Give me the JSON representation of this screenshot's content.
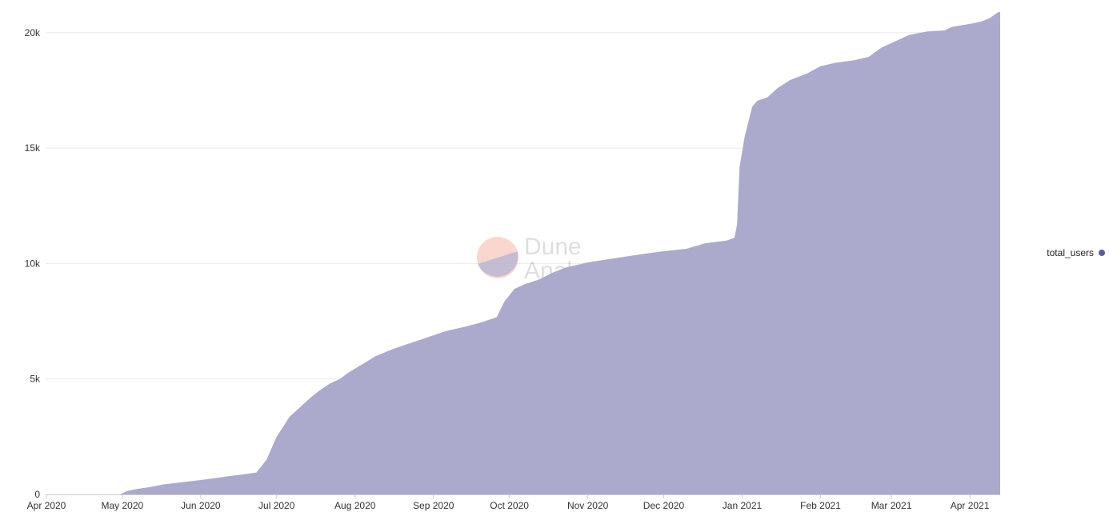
{
  "chart_data": {
    "type": "area",
    "title": "",
    "xlabel": "",
    "ylabel": "",
    "ylim": [
      0,
      21000
    ],
    "xlim": [
      "2020-04-01",
      "2021-04-13"
    ],
    "x_tick_labels": [
      "Apr 2020",
      "May 2020",
      "Jun 2020",
      "Jul 2020",
      "Aug 2020",
      "Sep 2020",
      "Oct 2020",
      "Nov 2020",
      "Dec 2020",
      "Jan 2021",
      "Feb 2021",
      "Mar 2021",
      "Apr 2021"
    ],
    "x_tick_dates": [
      "2020-04-01",
      "2020-05-01",
      "2020-06-01",
      "2020-07-01",
      "2020-08-01",
      "2020-09-01",
      "2020-10-01",
      "2020-11-01",
      "2020-12-01",
      "2021-01-01",
      "2021-02-01",
      "2021-03-01",
      "2021-04-01"
    ],
    "y_ticks": [
      0,
      5000,
      10000,
      15000,
      20000
    ],
    "y_tick_labels": [
      "0",
      "5k",
      "10k",
      "15k",
      "20k"
    ],
    "grid": true,
    "legend_position": "right",
    "series": [
      {
        "name": "total_users",
        "color": "#5b5a9f",
        "fill_color": "#a9a8cb",
        "points": [
          [
            "2020-04-01",
            0
          ],
          [
            "2020-04-30",
            0
          ],
          [
            "2020-05-03",
            150
          ],
          [
            "2020-05-06",
            220
          ],
          [
            "2020-05-12",
            320
          ],
          [
            "2020-05-17",
            430
          ],
          [
            "2020-05-24",
            520
          ],
          [
            "2020-05-31",
            610
          ],
          [
            "2020-06-07",
            710
          ],
          [
            "2020-06-12",
            790
          ],
          [
            "2020-06-18",
            870
          ],
          [
            "2020-06-23",
            950
          ],
          [
            "2020-06-27",
            1500
          ],
          [
            "2020-07-01",
            2500
          ],
          [
            "2020-07-04",
            3000
          ],
          [
            "2020-07-06",
            3350
          ],
          [
            "2020-07-09",
            3650
          ],
          [
            "2020-07-12",
            3950
          ],
          [
            "2020-07-15",
            4250
          ],
          [
            "2020-07-18",
            4500
          ],
          [
            "2020-07-22",
            4800
          ],
          [
            "2020-07-26",
            5000
          ],
          [
            "2020-07-29",
            5250
          ],
          [
            "2020-08-04",
            5650
          ],
          [
            "2020-08-09",
            5980
          ],
          [
            "2020-08-16",
            6300
          ],
          [
            "2020-08-23",
            6560
          ],
          [
            "2020-08-30",
            6820
          ],
          [
            "2020-09-06",
            7080
          ],
          [
            "2020-09-13",
            7250
          ],
          [
            "2020-09-20",
            7450
          ],
          [
            "2020-09-26",
            7680
          ],
          [
            "2020-09-29",
            8350
          ],
          [
            "2020-10-03",
            8900
          ],
          [
            "2020-10-07",
            9100
          ],
          [
            "2020-10-13",
            9320
          ],
          [
            "2020-10-18",
            9600
          ],
          [
            "2020-10-23",
            9820
          ],
          [
            "2020-11-01",
            10050
          ],
          [
            "2020-11-10",
            10200
          ],
          [
            "2020-11-20",
            10370
          ],
          [
            "2020-11-30",
            10520
          ],
          [
            "2020-12-10",
            10640
          ],
          [
            "2020-12-17",
            10870
          ],
          [
            "2020-12-26",
            11000
          ],
          [
            "2020-12-29",
            11120
          ],
          [
            "2020-12-30",
            11700
          ],
          [
            "2020-12-31",
            14200
          ],
          [
            "2021-01-02",
            15500
          ],
          [
            "2021-01-05",
            16800
          ],
          [
            "2021-01-07",
            17050
          ],
          [
            "2021-01-11",
            17200
          ],
          [
            "2021-01-15",
            17600
          ],
          [
            "2021-01-20",
            17950
          ],
          [
            "2021-01-27",
            18250
          ],
          [
            "2021-02-01",
            18550
          ],
          [
            "2021-02-07",
            18700
          ],
          [
            "2021-02-14",
            18800
          ],
          [
            "2021-02-20",
            18950
          ],
          [
            "2021-02-25",
            19350
          ],
          [
            "2021-03-03",
            19650
          ],
          [
            "2021-03-08",
            19900
          ],
          [
            "2021-03-15",
            20050
          ],
          [
            "2021-03-22",
            20100
          ],
          [
            "2021-03-25",
            20250
          ],
          [
            "2021-04-03",
            20420
          ],
          [
            "2021-04-06",
            20500
          ],
          [
            "2021-04-09",
            20640
          ],
          [
            "2021-04-12",
            20880
          ],
          [
            "2021-04-13",
            20900
          ]
        ]
      }
    ]
  },
  "watermark": {
    "line1": "Dune",
    "line2": "Analytics",
    "colors": [
      "#f4b6a8",
      "#b6b5d2"
    ]
  },
  "colors": {
    "grid": "#ebebeb",
    "axis": "#cccccc",
    "background": "#ffffff"
  }
}
